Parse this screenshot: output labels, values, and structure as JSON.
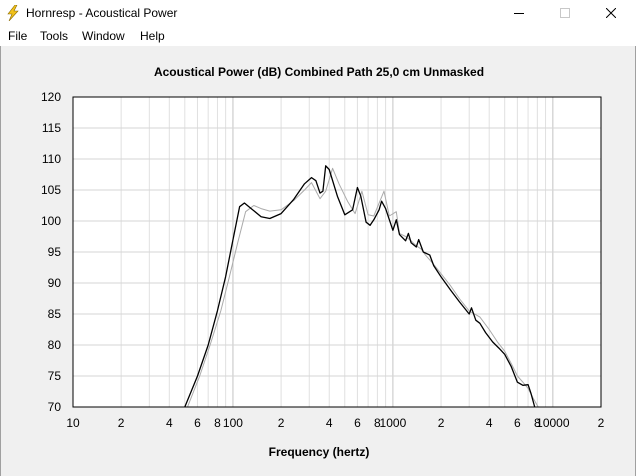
{
  "window": {
    "title": "Hornresp - Acoustical Power",
    "icon": "lightning-bolt-icon"
  },
  "menu": [
    "File",
    "Tools",
    "Window",
    "Help"
  ],
  "chart_data": {
    "type": "line",
    "title": "Acoustical Power (dB)   Combined   Path 25,0 cm   Unmasked",
    "xlabel": "Frequency (hertz)",
    "ylabel": "",
    "x_scale": "log",
    "xlim": [
      10,
      20000
    ],
    "ylim": [
      70,
      120
    ],
    "y_ticks": [
      "120",
      "115",
      "110",
      "105",
      "100",
      "95",
      "90",
      "85",
      "80",
      "75",
      "70"
    ],
    "x_ticks": [
      {
        "v": 10,
        "t": "10"
      },
      {
        "v": 20,
        "t": "2"
      },
      {
        "v": 40,
        "t": "4"
      },
      {
        "v": 60,
        "t": "6"
      },
      {
        "v": 80,
        "t": "8"
      },
      {
        "v": 100,
        "t": "100"
      },
      {
        "v": 200,
        "t": "2"
      },
      {
        "v": 400,
        "t": "4"
      },
      {
        "v": 600,
        "t": "6"
      },
      {
        "v": 800,
        "t": "8"
      },
      {
        "v": 1000,
        "t": "1000"
      },
      {
        "v": 2000,
        "t": "2"
      },
      {
        "v": 4000,
        "t": "4"
      },
      {
        "v": 6000,
        "t": "6"
      },
      {
        "v": 8000,
        "t": "8"
      },
      {
        "v": 10000,
        "t": "10000"
      },
      {
        "v": 20000,
        "t": "2"
      }
    ],
    "grid": true,
    "series": [
      {
        "color": "#000000",
        "points": [
          [
            50,
            70
          ],
          [
            60,
            75
          ],
          [
            70,
            80
          ],
          [
            80,
            85.5
          ],
          [
            90,
            91
          ],
          [
            100,
            97
          ],
          [
            110,
            102.3
          ],
          [
            118,
            102.9
          ],
          [
            130,
            102
          ],
          [
            150,
            100.7
          ],
          [
            170,
            100.4
          ],
          [
            200,
            101.2
          ],
          [
            240,
            103.5
          ],
          [
            280,
            106
          ],
          [
            310,
            107
          ],
          [
            330,
            106.5
          ],
          [
            350,
            104.5
          ],
          [
            365,
            104.8
          ],
          [
            380,
            108.9
          ],
          [
            400,
            108.3
          ],
          [
            450,
            104
          ],
          [
            500,
            101
          ],
          [
            560,
            101.8
          ],
          [
            600,
            105.4
          ],
          [
            630,
            104
          ],
          [
            680,
            99.8
          ],
          [
            720,
            99.3
          ],
          [
            760,
            100.2
          ],
          [
            820,
            101.8
          ],
          [
            850,
            103.2
          ],
          [
            900,
            102
          ],
          [
            1000,
            98.5
          ],
          [
            1050,
            100.2
          ],
          [
            1100,
            97.8
          ],
          [
            1200,
            96.8
          ],
          [
            1250,
            98
          ],
          [
            1300,
            96.5
          ],
          [
            1400,
            95.8
          ],
          [
            1450,
            97
          ],
          [
            1550,
            95
          ],
          [
            1700,
            94.5
          ],
          [
            1800,
            92.8
          ],
          [
            2000,
            91
          ],
          [
            2300,
            88.8
          ],
          [
            2600,
            87
          ],
          [
            3000,
            85
          ],
          [
            3100,
            86
          ],
          [
            3300,
            84
          ],
          [
            3500,
            83.5
          ],
          [
            3800,
            82
          ],
          [
            4200,
            80.5
          ],
          [
            4600,
            79.5
          ],
          [
            5000,
            78.5
          ],
          [
            5500,
            76.5
          ],
          [
            6000,
            74
          ],
          [
            6500,
            73.5
          ],
          [
            7000,
            73.6
          ],
          [
            7300,
            72.2
          ],
          [
            7700,
            70
          ]
        ]
      },
      {
        "color": "#aaaaaa",
        "points": [
          [
            52,
            70
          ],
          [
            62,
            75
          ],
          [
            72,
            80
          ],
          [
            84,
            85.5
          ],
          [
            95,
            91
          ],
          [
            107,
            96.5
          ],
          [
            120,
            101.5
          ],
          [
            135,
            102.5
          ],
          [
            150,
            102
          ],
          [
            170,
            101.6
          ],
          [
            200,
            101.8
          ],
          [
            240,
            103.3
          ],
          [
            280,
            105
          ],
          [
            310,
            106.2
          ],
          [
            350,
            103.6
          ],
          [
            380,
            104.8
          ],
          [
            420,
            108.5
          ],
          [
            460,
            106
          ],
          [
            520,
            103.2
          ],
          [
            580,
            101.2
          ],
          [
            640,
            104.8
          ],
          [
            700,
            101
          ],
          [
            760,
            100.8
          ],
          [
            880,
            104.8
          ],
          [
            950,
            100.8
          ],
          [
            1050,
            101.5
          ],
          [
            1100,
            98
          ],
          [
            1200,
            97.5
          ],
          [
            1300,
            96.8
          ],
          [
            1400,
            96
          ],
          [
            1500,
            95.5
          ],
          [
            1600,
            94.5
          ],
          [
            1800,
            93
          ],
          [
            2000,
            91.5
          ],
          [
            2300,
            89.5
          ],
          [
            2600,
            87.5
          ],
          [
            3000,
            85.5
          ],
          [
            3500,
            84.5
          ],
          [
            4000,
            82.5
          ],
          [
            4500,
            80.5
          ],
          [
            5000,
            79
          ],
          [
            5500,
            77
          ],
          [
            6000,
            75
          ],
          [
            6500,
            74
          ],
          [
            7000,
            73
          ],
          [
            7500,
            71.5
          ],
          [
            8100,
            70
          ]
        ]
      }
    ]
  }
}
